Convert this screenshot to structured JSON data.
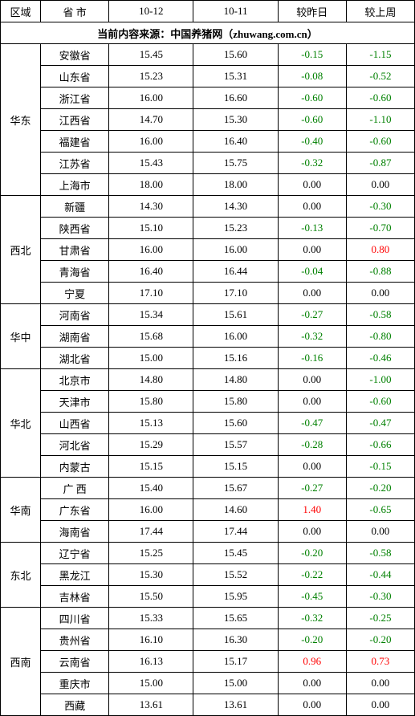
{
  "headers": {
    "region": "区域",
    "province": "省 市",
    "col_a": "10-12",
    "col_b": "10-11",
    "delta_day": "较昨日",
    "delta_week": "较上周"
  },
  "source_line": "当前内容来源：中国养猪网（zhuwang.com.cn）",
  "colors": {
    "neg": "#008000",
    "pos": "#ff0000",
    "zero": "#000000",
    "border": "#000000",
    "bg": "#ffffff"
  },
  "regions": [
    {
      "name": "华东",
      "rows": [
        {
          "prov": "安徽省",
          "a": "15.45",
          "b": "15.60",
          "d1": "-0.15",
          "d2": "-1.15"
        },
        {
          "prov": "山东省",
          "a": "15.23",
          "b": "15.31",
          "d1": "-0.08",
          "d2": "-0.52"
        },
        {
          "prov": "浙江省",
          "a": "16.00",
          "b": "16.60",
          "d1": "-0.60",
          "d2": "-0.60"
        },
        {
          "prov": "江西省",
          "a": "14.70",
          "b": "15.30",
          "d1": "-0.60",
          "d2": "-1.10"
        },
        {
          "prov": "福建省",
          "a": "16.00",
          "b": "16.40",
          "d1": "-0.40",
          "d2": "-0.60"
        },
        {
          "prov": "江苏省",
          "a": "15.43",
          "b": "15.75",
          "d1": "-0.32",
          "d2": "-0.87"
        },
        {
          "prov": "上海市",
          "a": "18.00",
          "b": "18.00",
          "d1": "0.00",
          "d2": "0.00"
        }
      ]
    },
    {
      "name": "西北",
      "rows": [
        {
          "prov": "新疆",
          "a": "14.30",
          "b": "14.30",
          "d1": "0.00",
          "d2": "-0.30"
        },
        {
          "prov": "陕西省",
          "a": "15.10",
          "b": "15.23",
          "d1": "-0.13",
          "d2": "-0.70"
        },
        {
          "prov": "甘肃省",
          "a": "16.00",
          "b": "16.00",
          "d1": "0.00",
          "d2": "0.80"
        },
        {
          "prov": "青海省",
          "a": "16.40",
          "b": "16.44",
          "d1": "-0.04",
          "d2": "-0.88"
        },
        {
          "prov": "宁夏",
          "a": "17.10",
          "b": "17.10",
          "d1": "0.00",
          "d2": "0.00"
        }
      ]
    },
    {
      "name": "华中",
      "rows": [
        {
          "prov": "河南省",
          "a": "15.34",
          "b": "15.61",
          "d1": "-0.27",
          "d2": "-0.58"
        },
        {
          "prov": "湖南省",
          "a": "15.68",
          "b": "16.00",
          "d1": "-0.32",
          "d2": "-0.80"
        },
        {
          "prov": "湖北省",
          "a": "15.00",
          "b": "15.16",
          "d1": "-0.16",
          "d2": "-0.46"
        }
      ]
    },
    {
      "name": "华北",
      "rows": [
        {
          "prov": "北京市",
          "a": "14.80",
          "b": "14.80",
          "d1": "0.00",
          "d2": "-1.00"
        },
        {
          "prov": "天津市",
          "a": "15.80",
          "b": "15.80",
          "d1": "0.00",
          "d2": "-0.60"
        },
        {
          "prov": "山西省",
          "a": "15.13",
          "b": "15.60",
          "d1": "-0.47",
          "d2": "-0.47"
        },
        {
          "prov": "河北省",
          "a": "15.29",
          "b": "15.57",
          "d1": "-0.28",
          "d2": "-0.66"
        },
        {
          "prov": "内蒙古",
          "a": "15.15",
          "b": "15.15",
          "d1": "0.00",
          "d2": "-0.15"
        }
      ]
    },
    {
      "name": "华南",
      "rows": [
        {
          "prov": "广 西",
          "a": "15.40",
          "b": "15.67",
          "d1": "-0.27",
          "d2": "-0.20"
        },
        {
          "prov": "广东省",
          "a": "16.00",
          "b": "14.60",
          "d1": "1.40",
          "d2": "-0.65"
        },
        {
          "prov": "海南省",
          "a": "17.44",
          "b": "17.44",
          "d1": "0.00",
          "d2": "0.00"
        }
      ]
    },
    {
      "name": "东北",
      "rows": [
        {
          "prov": "辽宁省",
          "a": "15.25",
          "b": "15.45",
          "d1": "-0.20",
          "d2": "-0.58"
        },
        {
          "prov": "黑龙江",
          "a": "15.30",
          "b": "15.52",
          "d1": "-0.22",
          "d2": "-0.44"
        },
        {
          "prov": "吉林省",
          "a": "15.50",
          "b": "15.95",
          "d1": "-0.45",
          "d2": "-0.30"
        }
      ]
    },
    {
      "name": "西南",
      "rows": [
        {
          "prov": "四川省",
          "a": "15.33",
          "b": "15.65",
          "d1": "-0.32",
          "d2": "-0.25"
        },
        {
          "prov": "贵州省",
          "a": "16.10",
          "b": "16.30",
          "d1": "-0.20",
          "d2": "-0.20"
        },
        {
          "prov": "云南省",
          "a": "16.13",
          "b": "15.17",
          "d1": "0.96",
          "d2": "0.73"
        },
        {
          "prov": "重庆市",
          "a": "15.00",
          "b": "15.00",
          "d1": "0.00",
          "d2": "0.00"
        },
        {
          "prov": "西藏",
          "a": "13.61",
          "b": "13.61",
          "d1": "0.00",
          "d2": "0.00"
        }
      ]
    }
  ]
}
